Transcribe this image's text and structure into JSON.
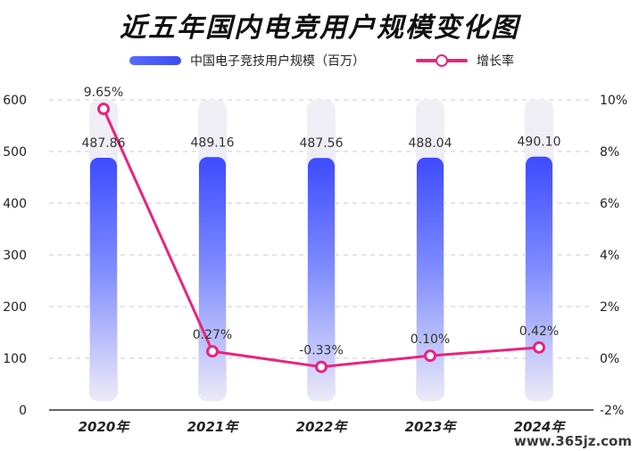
{
  "title": "近五年国内电竞用户规模变化图",
  "legend": {
    "bar_label": "中国电子竞技用户规模（百万）",
    "line_label": "增长率"
  },
  "watermark": "www.365jz.com",
  "colors": {
    "bar": "#4a5cff",
    "line": "#e9247e"
  },
  "chart_data": {
    "type": "bar",
    "categories": [
      "2020年",
      "2021年",
      "2022年",
      "2023年",
      "2024年"
    ],
    "series": [
      {
        "name": "中国电子竞技用户规模（百万）",
        "type": "bar",
        "axis": "left",
        "values": [
          487.86,
          489.16,
          487.56,
          488.04,
          490.1
        ],
        "labels": [
          "487.86",
          "489.16",
          "487.56",
          "488.04",
          "490.10"
        ]
      },
      {
        "name": "增长率",
        "type": "line",
        "axis": "right",
        "values": [
          9.65,
          0.27,
          -0.33,
          0.1,
          0.42
        ],
        "labels": [
          "9.65%",
          "0.27%",
          "-0.33%",
          "0.10%",
          "0.42%"
        ]
      }
    ],
    "y_left": {
      "min": 0,
      "max": 600,
      "ticks": [
        "0",
        "100",
        "200",
        "300",
        "400",
        "500",
        "600"
      ]
    },
    "y_right": {
      "min": -2,
      "max": 10,
      "ticks": [
        "-2%",
        "0%",
        "2%",
        "4%",
        "6%",
        "8%",
        "10%"
      ]
    },
    "grid": true
  }
}
